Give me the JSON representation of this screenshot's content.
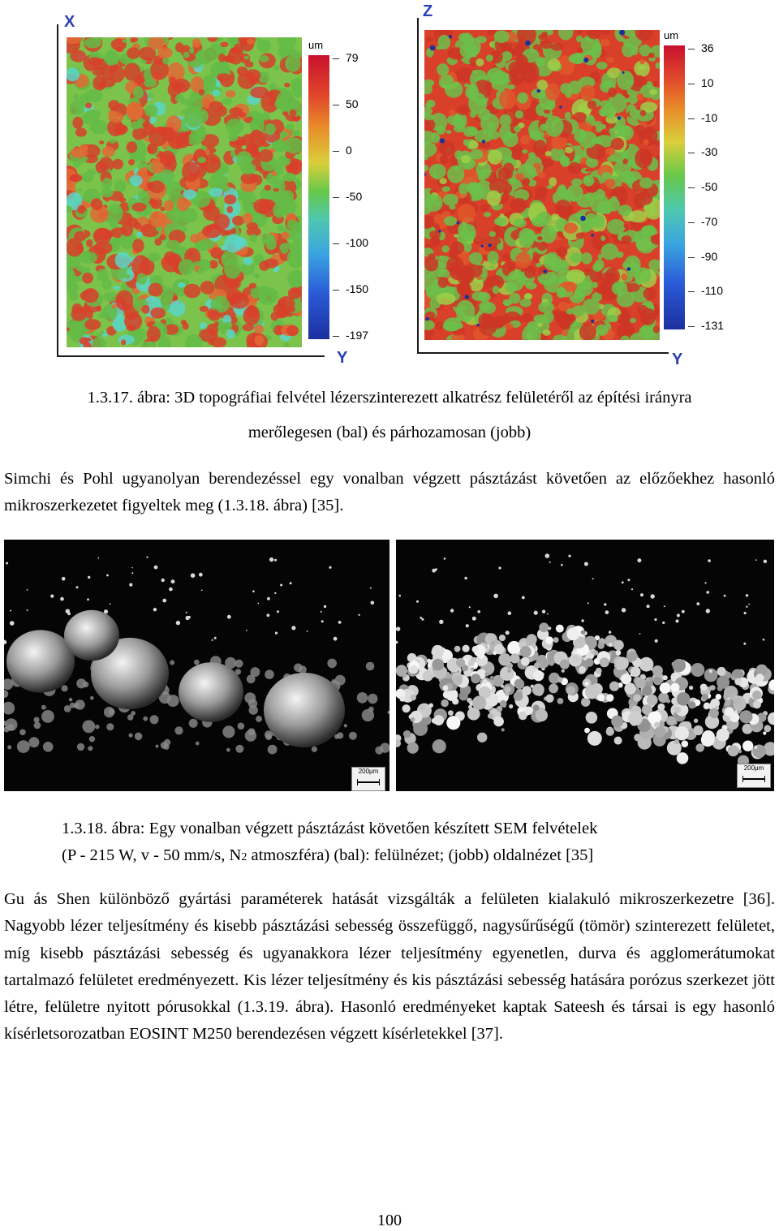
{
  "figure1": {
    "left_panel": {
      "axis_vertical": "X",
      "axis_horizontal": "Y",
      "colorbar_unit": "um",
      "colorbar_ticks": [
        "79",
        "50",
        "0",
        "-50",
        "-100",
        "-150",
        "-197"
      ]
    },
    "right_panel": {
      "axis_vertical": "Z",
      "axis_horizontal": "Y",
      "colorbar_unit": "um",
      "colorbar_ticks": [
        "36",
        "10",
        "-10",
        "-30",
        "-50",
        "-70",
        "-90",
        "-110",
        "-131"
      ]
    },
    "caption_line1": "1.3.17. ábra: 3D topográfiai felvétel lézerszinterezett alkatrész felületéről az építési irányra",
    "caption_line2": "merőlegesen (bal) és párhozamosan (jobb)"
  },
  "paragraph1": "Simchi és Pohl ugyanolyan berendezéssel egy vonalban végzett pásztázást követően az előzőekhez hasonló mikroszerkezetet figyeltek meg (1.3.18. ábra) [35].",
  "figure2": {
    "left_scale_label": "200μm",
    "right_scale_label": "200μm",
    "caption_line1": "1.3.18. ábra: Egy vonalban végzett pásztázást követően készített SEM felvételek",
    "caption_line2_pre": "(P - 215 W, v - 50 mm/s, N",
    "caption_line2_sub": "2",
    "caption_line2_post": " atmoszféra) (bal): felülnézet; (jobb) oldalnézet [35]"
  },
  "paragraph2": "Gu ás Shen különböző gyártási paraméterek hatását vizsgálták a felületen kialakuló mikroszerkezetre [36]. Nagyobb lézer teljesítmény és kisebb pásztázási sebesség összefüggő, nagysűrűségű (tömör) szinterezett felületet, míg kisebb pásztázási sebesség és ugyanakkora lézer teljesítmény egyenetlen, durva és agglomerátumokat tartalmazó felületet eredményezett. Kis lézer teljesítmény és kis pásztázási sebesség hatására porózus szerkezet jött létre, felületre nyitott pórusokkal (1.3.19. ábra). Hasonló eredményeket kaptak Sateesh és társai is egy hasonló kísérletsorozatban EOSINT M250 berendezésen végzett kísérletekkel [37].",
  "page_number": "100",
  "colors": {
    "topo_red": "#d8402a",
    "topo_green": "#6cc04a",
    "topo_cyan": "#5ad6c8",
    "topo_blue": "#1c2fa0",
    "axis_letter": "#2a3fb0"
  }
}
